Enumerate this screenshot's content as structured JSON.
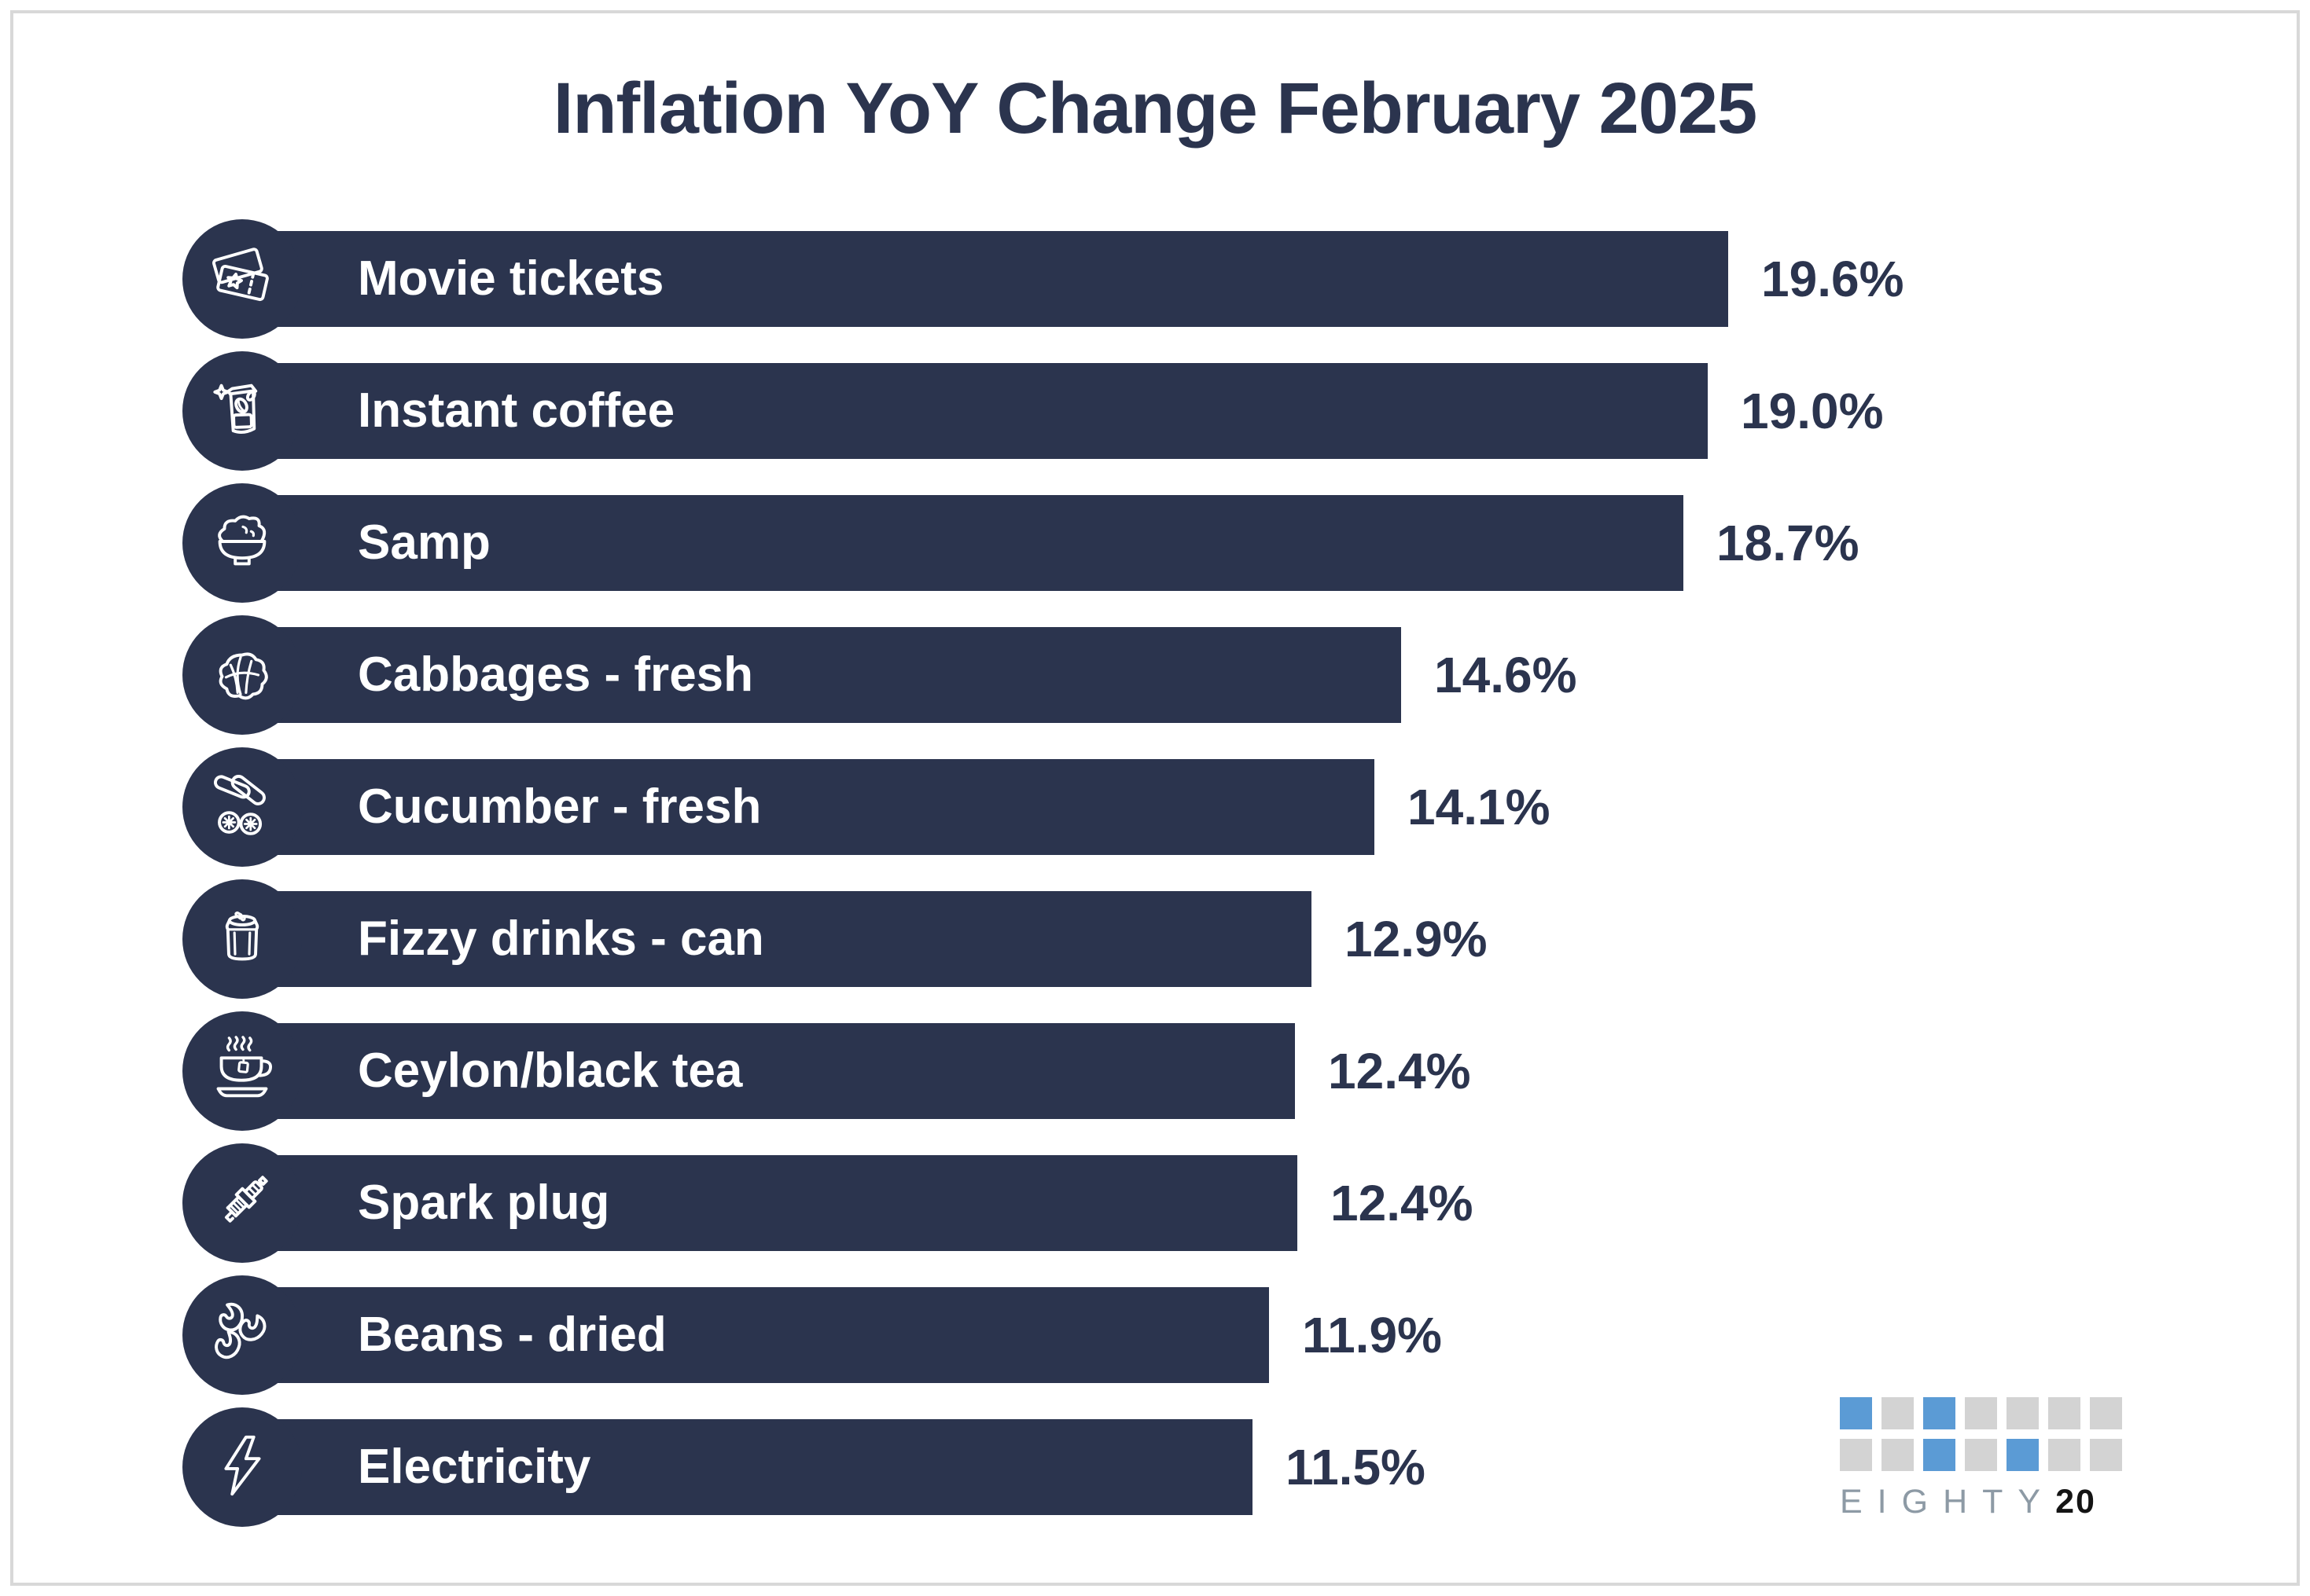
{
  "title": "Inflation YoY Change February 2025",
  "chart_data": {
    "type": "bar",
    "orientation": "horizontal",
    "title": "Inflation YoY Change February 2025",
    "categories": [
      "Movie tickets",
      "Instant coffee",
      "Samp",
      "Cabbages - fresh",
      "Cucumber - fresh",
      "Fizzy drinks - can",
      "Ceylon/black tea",
      "Spark plug",
      "Beans - dried",
      "Electricity"
    ],
    "values": [
      19.6,
      19.0,
      18.7,
      14.6,
      14.1,
      12.9,
      12.4,
      12.4,
      11.9,
      11.5
    ],
    "value_labels": [
      "19.6%",
      "19.0%",
      "18.7%",
      "14.6%",
      "14.1%",
      "12.9%",
      "12.4%",
      "12.4%",
      "11.9%",
      "11.5%"
    ],
    "icons": [
      "movie-tickets-icon",
      "coffee-bag-icon",
      "samp-bowl-icon",
      "cabbage-icon",
      "cucumber-icon",
      "soda-can-icon",
      "tea-cup-icon",
      "spark-plug-icon",
      "beans-icon",
      "lightning-bolt-icon"
    ],
    "bar_color": "#2B344E",
    "bar_text_color": "#FFFFFF",
    "value_text_color": "#2B344E",
    "xlim": [
      0,
      22
    ],
    "grid": "off",
    "legend": "none",
    "bar_end_x": [
      2198,
      2172,
      2141,
      1782,
      1748,
      1668,
      1647,
      1650,
      1614,
      1593
    ]
  },
  "logo": {
    "name": "EIGHTY20",
    "word_light": "EIGHTY",
    "word_bold": "20",
    "square_blue": "#5B9BD5",
    "square_gray": "#D3D3D3",
    "text_gray": "#8D9AA5",
    "text_black": "#141414",
    "grid_rows": [
      [
        "blue",
        "gray",
        "blue",
        "gray",
        "gray",
        "gray",
        "gray"
      ],
      [
        "gray",
        "gray",
        "blue",
        "gray",
        "blue",
        "gray",
        "gray"
      ]
    ]
  }
}
